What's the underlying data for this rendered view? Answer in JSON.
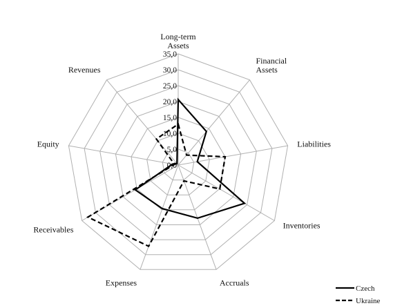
{
  "chart_data": {
    "type": "radar",
    "axes": [
      "Long-term Assets",
      "Financial Assets",
      "Liabilities",
      "Inventories",
      "Accruals",
      "Expenses",
      "Receivables",
      "Equity",
      "Revenues"
    ],
    "axis_labels": [
      [
        "Long-term",
        "Assets"
      ],
      [
        "Financial",
        "Assets"
      ],
      [
        "Liabilities"
      ],
      [
        "Inventories"
      ],
      [
        "Accruals"
      ],
      [
        "Expenses"
      ],
      [
        "Receivables"
      ],
      [
        "Equity"
      ],
      [
        "Revenues"
      ]
    ],
    "r_ticks": [
      "0,0",
      "5,0",
      "10,0",
      "15,0",
      "20,0",
      "25,0",
      "30,0",
      "35,0"
    ],
    "rlim": [
      0,
      35
    ],
    "grid": true,
    "legend_position": "bottom-right",
    "series": [
      {
        "name": "Czech",
        "style": "solid",
        "color": "#000000",
        "values": [
          20.6,
          13.8,
          6.1,
          24.1,
          17.8,
          14.6,
          15.6,
          1.8,
          0.6
        ]
      },
      {
        "name": "Ukraine",
        "style": "dashed",
        "color": "#000000",
        "values": [
          12.9,
          4.1,
          15.0,
          15.1,
          5.3,
          27.2,
          32.8,
          1.2,
          10.7
        ]
      }
    ]
  }
}
